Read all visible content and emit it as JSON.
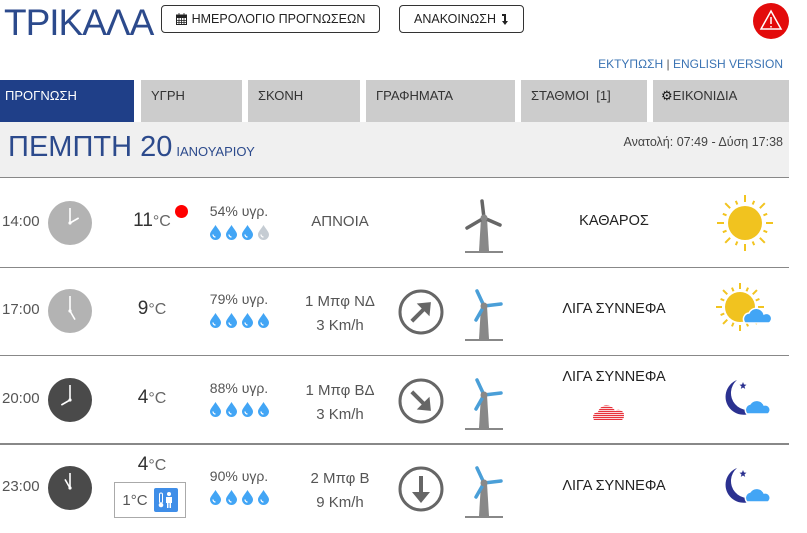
{
  "header": {
    "title": "ΤΡΙΚΑΛΑ",
    "calendar_button": "ΗΜΕΡΟΛΟΓΙΟ ΠΡΟΓΝΩΣΕΩΝ",
    "announcement_button": "ΑΝΑΚΟΙΝΩΣΗ",
    "alert_icon": "warning-triangle-icon",
    "alert_color": "#e30b0b",
    "print_link": "ΕΚΤΥΠΩΣΗ",
    "separator": "|",
    "english_link": "ENGLISH VERSION"
  },
  "tabs": [
    {
      "label": "ΠΡΟΓΝΩΣΗ",
      "active": true
    },
    {
      "label": "ΥΓΡΗ"
    },
    {
      "label": "ΣΚΟΝΗ"
    },
    {
      "label": "ΓΡΑΦΗΜΑΤΑ"
    },
    {
      "label": "ΣΤΑΘΜΟΙ  [1]"
    },
    {
      "label": "ΕΙΚΟΝΙΔΙΑ",
      "icon": "gear-icon"
    }
  ],
  "date": {
    "day": "ΠΕΜΠΤΗ 20",
    "month": "ΙΑΝΟΥΑΡΙΟΥ",
    "sun": "Ανατολή: 07:49  - Δύση 17:38"
  },
  "colors": {
    "accent": "#1f3f88",
    "drop": "#42a5f5",
    "drop_empty": "#c5ccd3"
  },
  "rows": [
    {
      "time": "14:00",
      "clock": "day",
      "temp": "11",
      "unit": "°C",
      "alert_dot": true,
      "humidity": "54% υγρ.",
      "drops": 3,
      "wind_line1": "ΑΠΝΟΙΑ",
      "wind_line2": "",
      "arrow": "",
      "turbine_active": false,
      "desc": "ΚΑΘΑΡΟΣ",
      "weather_icon": "sun-icon"
    },
    {
      "time": "17:00",
      "clock": "day",
      "temp": "9",
      "unit": "°C",
      "humidity": "79% υγρ.",
      "drops": 4,
      "wind_line1": "1 Μπφ ΝΔ",
      "wind_line2": "3 Km/h",
      "arrow": "NE",
      "turbine_active": true,
      "desc": "ΛΙΓΑ ΣΥΝΝΕΦΑ",
      "weather_icon": "sun-cloud-icon"
    },
    {
      "time": "20:00",
      "clock": "night",
      "temp": "4",
      "unit": "°C",
      "humidity": "88% υγρ.",
      "drops": 4,
      "wind_line1": "1 Μπφ ΒΔ",
      "wind_line2": "3 Km/h",
      "arrow": "SE",
      "turbine_active": true,
      "desc": "ΛΙΓΑ ΣΥΝΝΕΦΑ",
      "extra_icon": "fog-cloud-icon",
      "weather_icon": "moon-cloud-icon"
    },
    {
      "time": "23:00",
      "clock": "night",
      "temp": "4",
      "unit": "°C",
      "feels_like": "1°C",
      "humidity": "90% υγρ.",
      "drops": 4,
      "wind_line1": "2 Μπφ Β",
      "wind_line2": "9 Km/h",
      "arrow": "S",
      "turbine_active": true,
      "desc": "ΛΙΓΑ ΣΥΝΝΕΦΑ",
      "weather_icon": "moon-cloud-icon"
    }
  ]
}
